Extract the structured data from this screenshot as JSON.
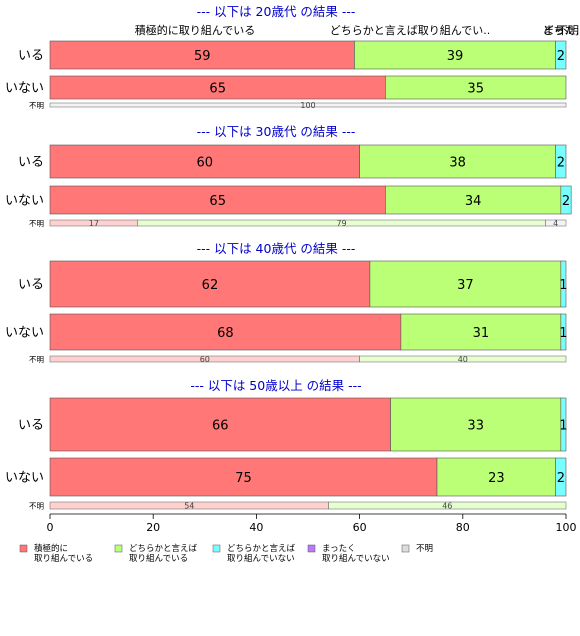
{
  "colors": {
    "積極的に取り組んでいる": "#ff7777",
    "どちらかと言えば取り組んでいる": "#bbff77",
    "どちらかと言えば取り組んでいない": "#77ffff",
    "まったく取り組んでいない": "#bb77ff",
    "不明": "#dddddd",
    "title": "#0000cc"
  },
  "chart_data": {
    "type": "bar",
    "orientation": "horizontal",
    "stacked": true,
    "xlim": [
      0,
      100
    ],
    "xticks": [
      "0",
      "20",
      "40",
      "60",
      "80",
      "100"
    ],
    "legend": {
      "placement": "bottom",
      "items": [
        {
          "key": "積極的に取り組んでいる",
          "lines": [
            "積極的に",
            "取り組んでいる"
          ]
        },
        {
          "key": "どちらかと言えば取り組んでいる",
          "lines": [
            "どちらかと言えば",
            "取り組んでいる"
          ]
        },
        {
          "key": "どちらかと言えば取り組んでいない",
          "lines": [
            "どちらかと言えば",
            "取り組んでいない"
          ]
        },
        {
          "key": "まったく取り組んでいない",
          "lines": [
            "まったく",
            "取り組んでいない"
          ]
        },
        {
          "key": "不明",
          "lines": [
            "不明"
          ]
        }
      ]
    },
    "top_header_labels": [
      {
        "text": "積極的に取り組んでいる",
        "series": "積極的に取り組んでいる"
      },
      {
        "text": "どちらかと言えば取り組んでい..",
        "series": "どちらかと言えば取り組んでいる"
      },
      {
        "text": "どち..",
        "series": "どちらかと言えば取り組んでいない"
      },
      {
        "text": "まった..",
        "series": "まったく取り組んでいない"
      },
      {
        "text": "不明",
        "series": "不明"
      }
    ],
    "panels": [
      {
        "title": "--- 以下は 20歳代 の結果 ---",
        "rows": [
          {
            "label": "いる",
            "values": [
              59,
              39,
              2,
              0,
              0
            ]
          },
          {
            "label": "いない",
            "values": [
              65,
              35,
              0,
              0,
              0
            ]
          }
        ],
        "unknown": {
          "label": "不明",
          "values": [
            0,
            0,
            0,
            0,
            100
          ],
          "labels": [
            "",
            "",
            "",
            "",
            "100"
          ]
        }
      },
      {
        "title": "--- 以下は 30歳代 の結果 ---",
        "rows": [
          {
            "label": "いる",
            "values": [
              60,
              38,
              2,
              0,
              0
            ]
          },
          {
            "label": "いない",
            "values": [
              65,
              34,
              2,
              0,
              0
            ]
          }
        ],
        "unknown": {
          "label": "不明",
          "values": [
            17,
            79,
            0,
            0,
            4
          ],
          "labels": [
            "17",
            "79",
            "",
            "",
            "4"
          ]
        }
      },
      {
        "title": "--- 以下は 40歳代 の結果 ---",
        "rows": [
          {
            "label": "いる",
            "values": [
              62,
              37,
              1,
              0,
              0
            ]
          },
          {
            "label": "いない",
            "values": [
              68,
              31,
              1,
              0,
              0
            ]
          }
        ],
        "unknown": {
          "label": "不明",
          "values": [
            60,
            40,
            0,
            0,
            0
          ],
          "labels": [
            "60",
            "40",
            "",
            "",
            ""
          ]
        }
      },
      {
        "title": "--- 以下は 50歳以上 の結果 ---",
        "rows": [
          {
            "label": "いる",
            "values": [
              66,
              33,
              1,
              0,
              0
            ]
          },
          {
            "label": "いない",
            "values": [
              75,
              23,
              2,
              0,
              0
            ]
          }
        ],
        "unknown": {
          "label": "不明",
          "values": [
            54,
            46,
            0,
            0,
            0
          ],
          "labels": [
            "54",
            "46",
            "",
            "",
            ""
          ]
        }
      }
    ]
  }
}
